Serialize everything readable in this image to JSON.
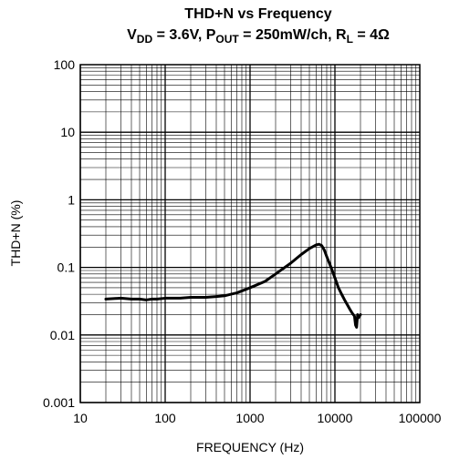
{
  "chart_data": {
    "type": "line",
    "title": "THD+N vs Frequency",
    "subtitle": {
      "vdd_sym": "V",
      "vdd_sub": "DD",
      "vdd_val": " = 3.6V, ",
      "pout_sym": "P",
      "pout_sub": "OUT",
      "pout_val": " = 250mW/ch, ",
      "rl_sym": "R",
      "rl_sub": "L",
      "rl_val": " = 4Ω"
    },
    "xlabel": "FREQUENCY (Hz)",
    "ylabel": "THD+N (%)",
    "x_scale": "log",
    "y_scale": "log",
    "xlim": [
      10,
      100000
    ],
    "ylim": [
      0.001,
      100
    ],
    "x_ticks": [
      10,
      100,
      1000,
      10000,
      100000
    ],
    "x_tick_labels": [
      "10",
      "100",
      "1000",
      "10000",
      "100000"
    ],
    "y_ticks": [
      0.001,
      0.01,
      0.1,
      1,
      10,
      100
    ],
    "y_tick_labels": [
      "0.001",
      "0.01",
      "0.1",
      "1",
      "10",
      "100"
    ],
    "grid": true,
    "colors": {
      "line": "#000000",
      "grid": "#000000"
    },
    "series": [
      {
        "x": [
          20,
          30,
          40,
          50,
          60,
          70,
          80,
          100,
          150,
          200,
          300,
          400,
          500,
          700,
          1000,
          1500,
          2000,
          3000,
          4000,
          5000,
          6000,
          6500,
          7000,
          7500,
          8000,
          9000,
          10000,
          11000,
          12000,
          13000,
          14000,
          15000,
          16000,
          17000,
          17500,
          18000,
          18500,
          19000,
          20000
        ],
        "y": [
          0.034,
          0.035,
          0.034,
          0.034,
          0.033,
          0.034,
          0.034,
          0.035,
          0.035,
          0.036,
          0.036,
          0.037,
          0.038,
          0.042,
          0.05,
          0.062,
          0.08,
          0.115,
          0.155,
          0.19,
          0.215,
          0.22,
          0.21,
          0.18,
          0.145,
          0.1,
          0.07,
          0.05,
          0.04,
          0.033,
          0.028,
          0.024,
          0.021,
          0.019,
          0.014,
          0.013,
          0.02,
          0.018,
          0.02
        ]
      }
    ]
  }
}
